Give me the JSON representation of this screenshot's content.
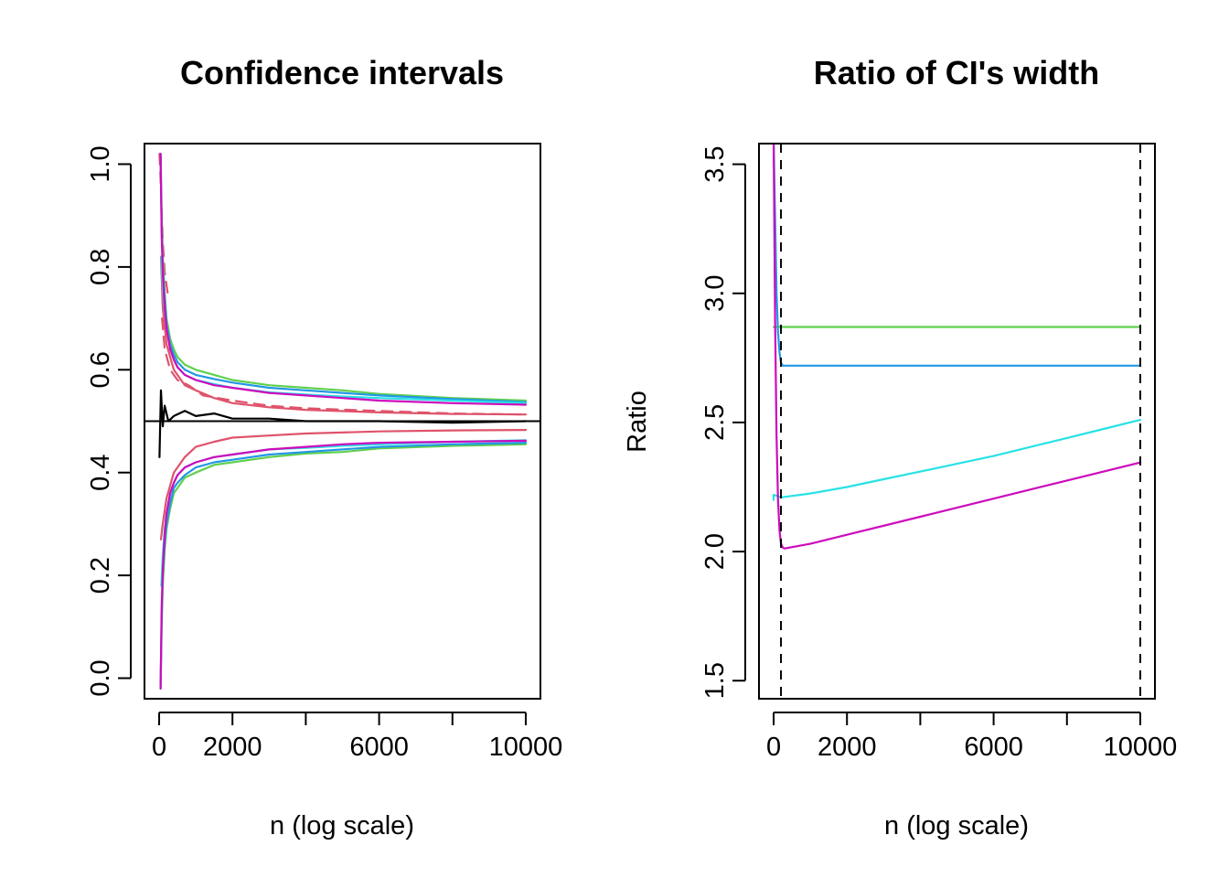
{
  "chart_data": [
    {
      "type": "line",
      "title": "Confidence intervals",
      "xlabel": "n (log scale)",
      "ylabel": "",
      "xlim": [
        -400,
        10400
      ],
      "ylim": [
        -0.04,
        1.04
      ],
      "x_ticks": [
        0,
        2000,
        4000,
        6000,
        8000,
        10000
      ],
      "x_tick_labels": [
        "0",
        "2000",
        "",
        "6000",
        "",
        "10000"
      ],
      "y_ticks": [
        0.0,
        0.2,
        0.4,
        0.6,
        0.8,
        1.0
      ],
      "y_tick_labels": [
        "0.0",
        "0.2",
        "0.4",
        "0.6",
        "0.8",
        "1.0"
      ],
      "reference_lines": [
        {
          "orientation": "horizontal",
          "value": 0.5,
          "color": "#000000"
        }
      ],
      "grid": false,
      "legend": "none",
      "series": [
        {
          "color": "#000000",
          "role": "estimate",
          "x": [
            10,
            50,
            100,
            150,
            250,
            400,
            700,
            1000,
            1500,
            2000,
            3000,
            4000,
            6000,
            8000,
            10000
          ],
          "y": [
            0.43,
            0.56,
            0.49,
            0.53,
            0.5,
            0.51,
            0.52,
            0.51,
            0.515,
            0.505,
            0.505,
            0.5,
            0.5,
            0.497,
            0.5
          ]
        },
        {
          "color": "#DF536B",
          "style": "dashed",
          "x": [
            10,
            30,
            60,
            100,
            150,
            250
          ],
          "y": [
            1.02,
            0.99,
            0.93,
            0.85,
            0.79,
            0.74
          ]
        },
        {
          "color": "#DF536B",
          "x": [
            50,
            100,
            200,
            400,
            700,
            1000,
            1500,
            2000,
            3000,
            4000,
            6000,
            8000,
            10000
          ],
          "y": [
            0.82,
            0.72,
            0.65,
            0.6,
            0.57,
            0.56,
            0.545,
            0.535,
            0.527,
            0.522,
            0.517,
            0.514,
            0.513
          ]
        },
        {
          "color": "#DF536B",
          "x": [
            50,
            100,
            200,
            400,
            700,
            1000,
            1500,
            2000,
            3000,
            4000,
            6000,
            8000,
            10000
          ],
          "y": [
            0.27,
            0.3,
            0.35,
            0.4,
            0.43,
            0.45,
            0.46,
            0.468,
            0.472,
            0.476,
            0.48,
            0.482,
            0.483
          ]
        },
        {
          "color": "#DF536B",
          "style": "dashed",
          "x": [
            80,
            150,
            300,
            500,
            800,
            1200,
            2000,
            3000,
            4000,
            6000,
            8000,
            10000
          ],
          "y": [
            0.7,
            0.64,
            0.6,
            0.58,
            0.57,
            0.55,
            0.54,
            0.53,
            0.525,
            0.52,
            0.515,
            0.513
          ]
        },
        {
          "color": "#61D04F",
          "x": [
            40,
            70,
            100,
            150,
            200,
            300,
            400,
            500,
            700,
            1000,
            1500,
            2000,
            3000,
            4000,
            5000,
            6000,
            8000,
            10000
          ],
          "y": [
            1.02,
            0.9,
            0.82,
            0.75,
            0.7,
            0.66,
            0.64,
            0.625,
            0.61,
            0.6,
            0.59,
            0.58,
            0.57,
            0.565,
            0.56,
            0.553,
            0.545,
            0.54
          ]
        },
        {
          "color": "#61D04F",
          "x": [
            40,
            70,
            100,
            150,
            200,
            300,
            400,
            500,
            700,
            1000,
            1500,
            2000,
            3000,
            4000,
            5000,
            6000,
            8000,
            10000
          ],
          "y": [
            -0.02,
            0.1,
            0.18,
            0.25,
            0.29,
            0.33,
            0.36,
            0.37,
            0.39,
            0.4,
            0.415,
            0.42,
            0.43,
            0.437,
            0.44,
            0.447,
            0.452,
            0.455
          ]
        },
        {
          "color": "#2297E6",
          "x": [
            40,
            70,
            100,
            150,
            200,
            300,
            400,
            500,
            700,
            1000,
            1500,
            2000,
            3000,
            4000,
            5000,
            6000,
            8000,
            10000
          ],
          "y": [
            1.02,
            0.88,
            0.8,
            0.74,
            0.69,
            0.65,
            0.63,
            0.615,
            0.6,
            0.59,
            0.582,
            0.575,
            0.565,
            0.56,
            0.555,
            0.55,
            0.543,
            0.537
          ]
        },
        {
          "color": "#2297E6",
          "x": [
            40,
            70,
            100,
            150,
            200,
            300,
            400,
            500,
            700,
            1000,
            1500,
            2000,
            3000,
            4000,
            5000,
            6000,
            8000,
            10000
          ],
          "y": [
            -0.02,
            0.12,
            0.2,
            0.26,
            0.3,
            0.34,
            0.37,
            0.38,
            0.395,
            0.41,
            0.42,
            0.425,
            0.435,
            0.44,
            0.445,
            0.45,
            0.455,
            0.458
          ]
        },
        {
          "color": "#28E2E5",
          "x": [
            60,
            100,
            150,
            200,
            300,
            400,
            500,
            700,
            1000,
            1500,
            2000,
            3000,
            4000,
            5000,
            6000,
            8000,
            10000
          ],
          "y": [
            0.82,
            0.76,
            0.71,
            0.68,
            0.64,
            0.62,
            0.605,
            0.59,
            0.58,
            0.572,
            0.565,
            0.556,
            0.552,
            0.548,
            0.545,
            0.54,
            0.535
          ]
        },
        {
          "color": "#28E2E5",
          "x": [
            60,
            100,
            150,
            200,
            300,
            400,
            500,
            700,
            1000,
            1500,
            2000,
            3000,
            4000,
            5000,
            6000,
            8000,
            10000
          ],
          "y": [
            0.18,
            0.24,
            0.29,
            0.32,
            0.36,
            0.38,
            0.395,
            0.41,
            0.42,
            0.43,
            0.435,
            0.445,
            0.448,
            0.452,
            0.455,
            0.46,
            0.463
          ]
        },
        {
          "color": "#CD0BBC",
          "x": [
            40,
            70,
            100,
            150,
            200,
            300,
            400,
            500,
            700,
            1000,
            1500,
            2000,
            3000,
            4000,
            5000,
            6000,
            8000,
            10000
          ],
          "y": [
            1.02,
            0.86,
            0.79,
            0.72,
            0.68,
            0.64,
            0.62,
            0.605,
            0.59,
            0.58,
            0.57,
            0.565,
            0.555,
            0.55,
            0.545,
            0.54,
            0.535,
            0.532
          ]
        },
        {
          "color": "#CD0BBC",
          "x": [
            40,
            70,
            100,
            150,
            200,
            300,
            400,
            500,
            700,
            1000,
            1500,
            2000,
            3000,
            4000,
            5000,
            6000,
            8000,
            10000
          ],
          "y": [
            -0.02,
            0.14,
            0.21,
            0.28,
            0.32,
            0.36,
            0.38,
            0.395,
            0.41,
            0.42,
            0.43,
            0.435,
            0.445,
            0.45,
            0.455,
            0.458,
            0.46,
            0.462
          ]
        }
      ]
    },
    {
      "type": "line",
      "title": "Ratio of CI's width",
      "xlabel": "n (log scale)",
      "ylabel": "Ratio",
      "xlim": [
        -400,
        10400
      ],
      "ylim": [
        1.43,
        3.58
      ],
      "x_ticks": [
        0,
        2000,
        4000,
        6000,
        8000,
        10000
      ],
      "x_tick_labels": [
        "0",
        "2000",
        "",
        "6000",
        "",
        "10000"
      ],
      "y_ticks": [
        1.5,
        2.0,
        2.5,
        3.0,
        3.5
      ],
      "y_tick_labels": [
        "1.5",
        "2.0",
        "2.5",
        "3.0",
        "3.5"
      ],
      "reference_lines": [
        {
          "orientation": "vertical",
          "value": 200,
          "style": "dashed",
          "color": "#000000"
        },
        {
          "orientation": "vertical",
          "value": 10000,
          "style": "dashed",
          "color": "#000000"
        }
      ],
      "grid": false,
      "legend": "none",
      "series": [
        {
          "color": "#61D04F",
          "x": [
            0,
            10000
          ],
          "y": [
            2.87,
            2.87
          ]
        },
        {
          "color": "#2297E6",
          "x": [
            0,
            40,
            80,
            120,
            160,
            200,
            250,
            10000
          ],
          "y": [
            3.6,
            3.3,
            3.0,
            2.85,
            2.77,
            2.73,
            2.72,
            2.72
          ]
        },
        {
          "color": "#28E2E5",
          "x": [
            0,
            0,
            200,
            1000,
            2000,
            3000,
            4000,
            5000,
            6000,
            7000,
            8000,
            9000,
            10000
          ],
          "y": [
            2.2,
            2.22,
            2.21,
            2.225,
            2.25,
            2.28,
            2.31,
            2.34,
            2.37,
            2.405,
            2.44,
            2.475,
            2.51
          ]
        },
        {
          "color": "#CD0BBC",
          "x": [
            0,
            40,
            80,
            120,
            160,
            200,
            250,
            300,
            1000,
            2000,
            4000,
            6000,
            8000,
            10000
          ],
          "y": [
            3.6,
            2.9,
            2.45,
            2.2,
            2.08,
            2.03,
            2.015,
            2.012,
            2.03,
            2.065,
            2.135,
            2.205,
            2.275,
            2.345
          ]
        }
      ]
    }
  ]
}
